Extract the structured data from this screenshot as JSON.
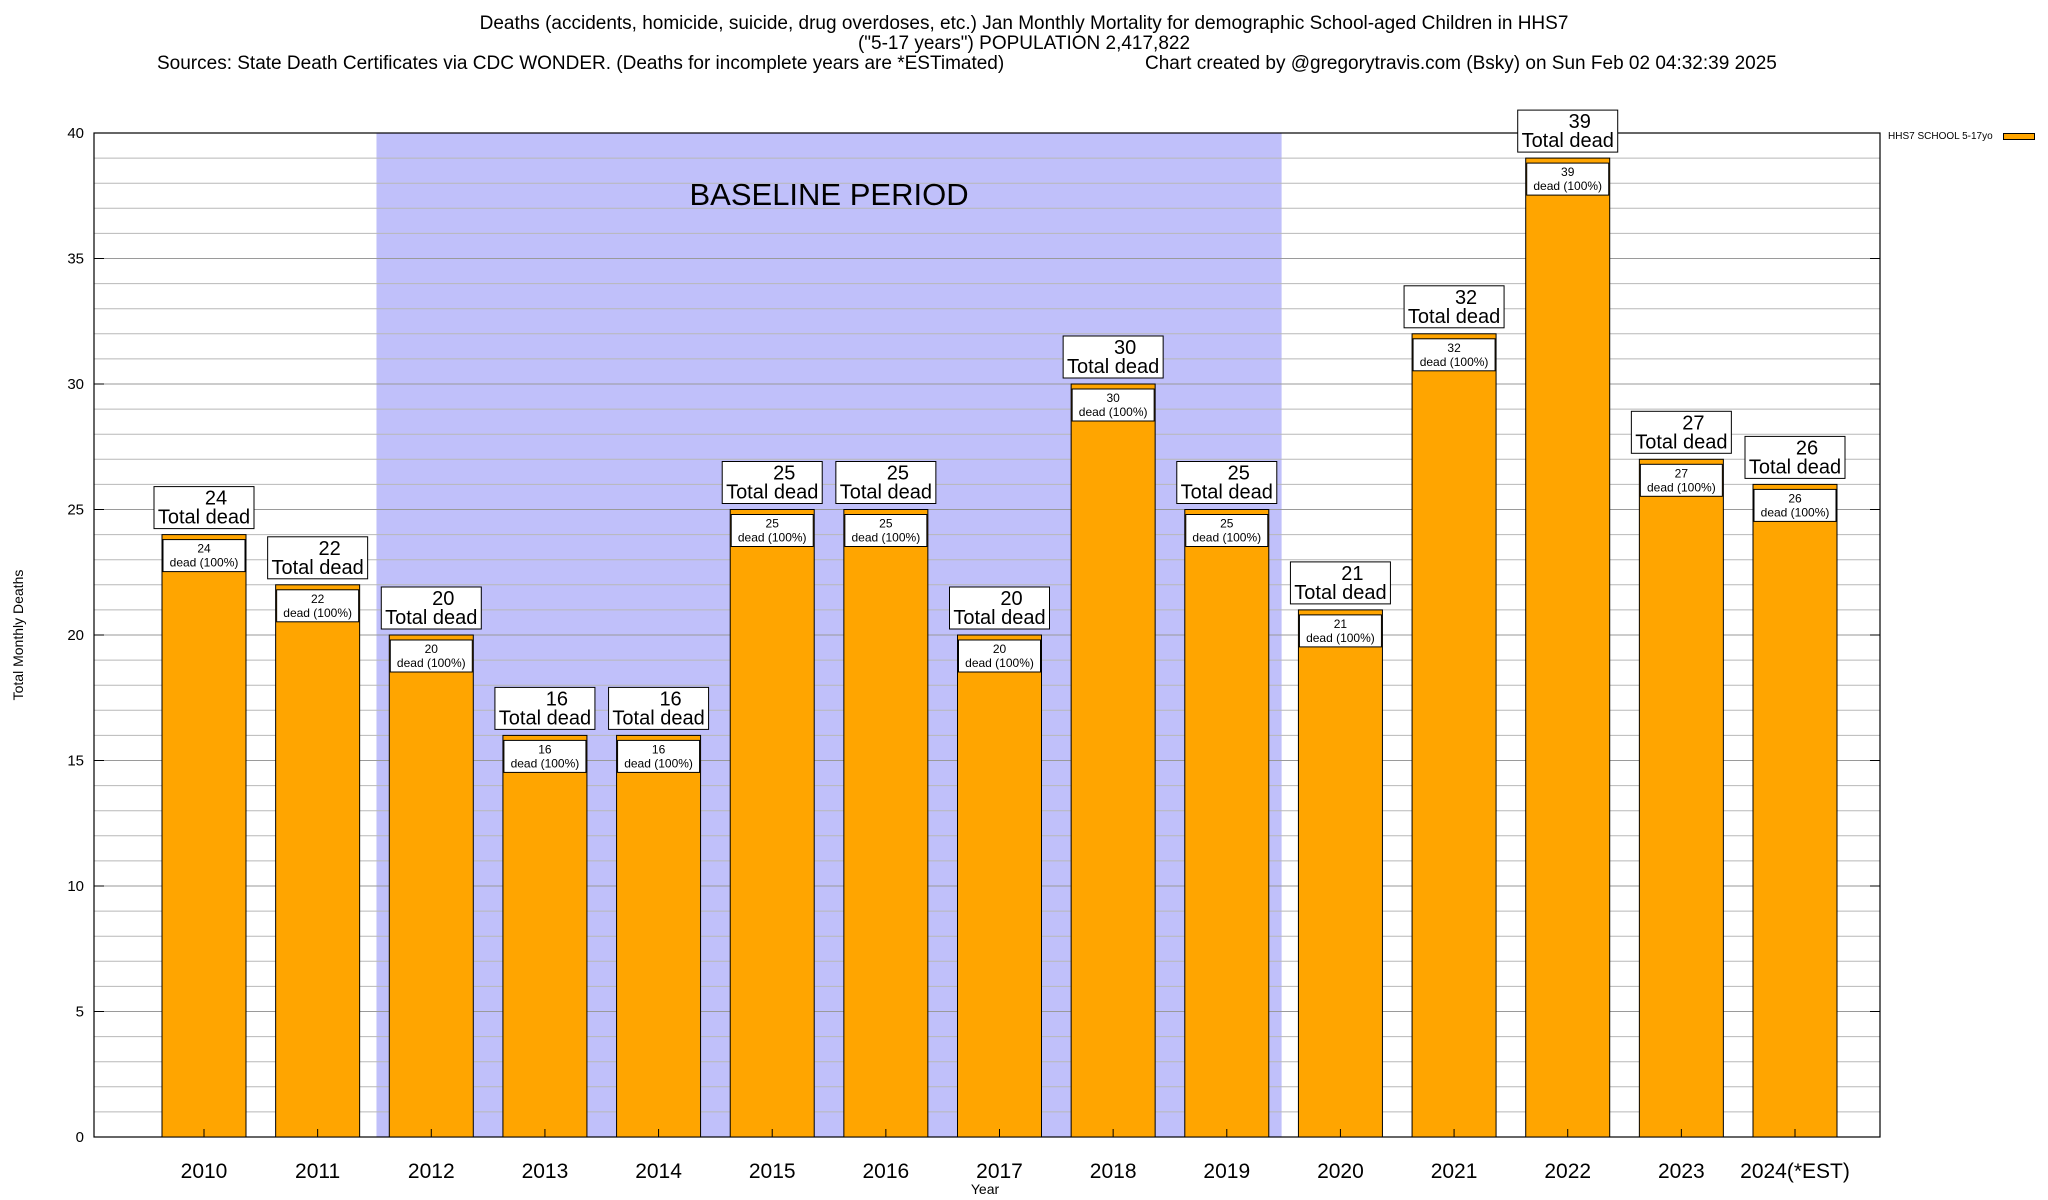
{
  "title": {
    "line1": "Deaths (accidents, homicide, suicide, drug overdoses, etc.) Jan Monthly Mortality for demographic School-aged Children in HHS7",
    "line2": "(\"5-17 years\") POPULATION 2,417,822",
    "line3_left": "Sources: State Death Certificates via CDC WONDER. (Deaths for incomplete years are *ESTimated)",
    "line3_right": "Chart created by @gregorytravis.com (Bsky) on Sun Feb 02 04:32:39 2025"
  },
  "colors": {
    "bar": "#ffa500",
    "baseline_shade": "#c0c0fa",
    "grid": "#b8b8b8"
  },
  "chart_data": {
    "type": "bar",
    "categories": [
      "2010",
      "2011",
      "2012",
      "2013",
      "2014",
      "2015",
      "2016",
      "2017",
      "2018",
      "2019",
      "2020",
      "2021",
      "2022",
      "2023",
      "2024(*EST)"
    ],
    "series": [
      {
        "name": "HHS7 SCHOOL 5-17yo",
        "values": [
          24,
          22,
          20,
          16,
          16,
          25,
          25,
          20,
          30,
          25,
          21,
          32,
          39,
          27,
          26
        ]
      }
    ],
    "xlabel": "Year",
    "ylabel": "Total Monthly Deaths",
    "ylim": [
      0,
      40
    ],
    "yticks": [
      0,
      5,
      10,
      15,
      20,
      25,
      30,
      35,
      40
    ],
    "minor_tick_step": 1,
    "grid": true,
    "legend_position": "top-right",
    "baseline_region": {
      "from": "2012",
      "to": "2019",
      "label": "BASELINE PERIOD"
    },
    "total_label_suffix": "Total dead",
    "inner_label_suffix": "dead (100%)"
  }
}
